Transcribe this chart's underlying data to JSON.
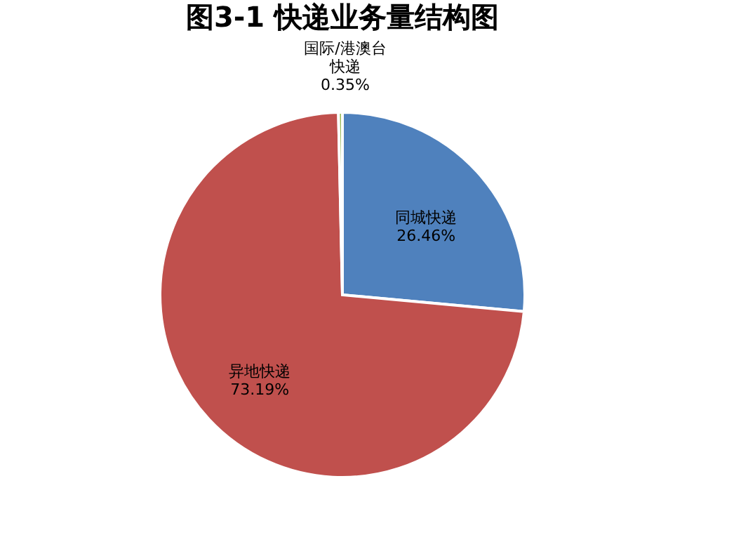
{
  "chart_data": {
    "type": "pie",
    "title": "图3-1  快递业务量结构图",
    "categories": [
      "同城快递",
      "异地快递",
      "国际/港澳台快递"
    ],
    "values": [
      26.46,
      73.19,
      0.35
    ],
    "colors": [
      "#4f81bd",
      "#c0504d",
      "#9bbb59"
    ],
    "value_labels": [
      "26.46%",
      "73.19%",
      "0.35%"
    ],
    "legend": false
  }
}
